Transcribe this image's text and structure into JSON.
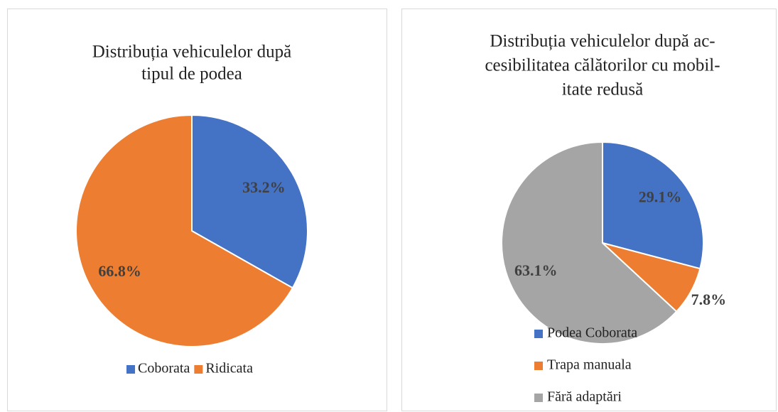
{
  "chart_data": [
    {
      "type": "pie",
      "title": [
        "Distribuția vehiculelor după",
        "tipul de podea"
      ],
      "categories": [
        "Coborata",
        "Ridicata"
      ],
      "values": [
        33.2,
        66.8
      ],
      "value_labels": [
        "33.2%",
        "66.8%"
      ],
      "colors": [
        "#4472c4",
        "#ed7d31"
      ],
      "legend": "bottom"
    },
    {
      "type": "pie",
      "title": [
        "Distribuția vehiculelor după ac-",
        "cesibilitatea călătorilor cu mobil-",
        "itate redusă"
      ],
      "categories": [
        "Podea Coborata",
        "Trapa manuala",
        "Fără adaptări"
      ],
      "values": [
        29.1,
        7.8,
        63.1
      ],
      "value_labels": [
        "29.1%",
        "7.8%",
        "63.1%"
      ],
      "colors": [
        "#4472c4",
        "#ed7d31",
        "#a5a5a5"
      ],
      "legend": "bottom"
    }
  ]
}
